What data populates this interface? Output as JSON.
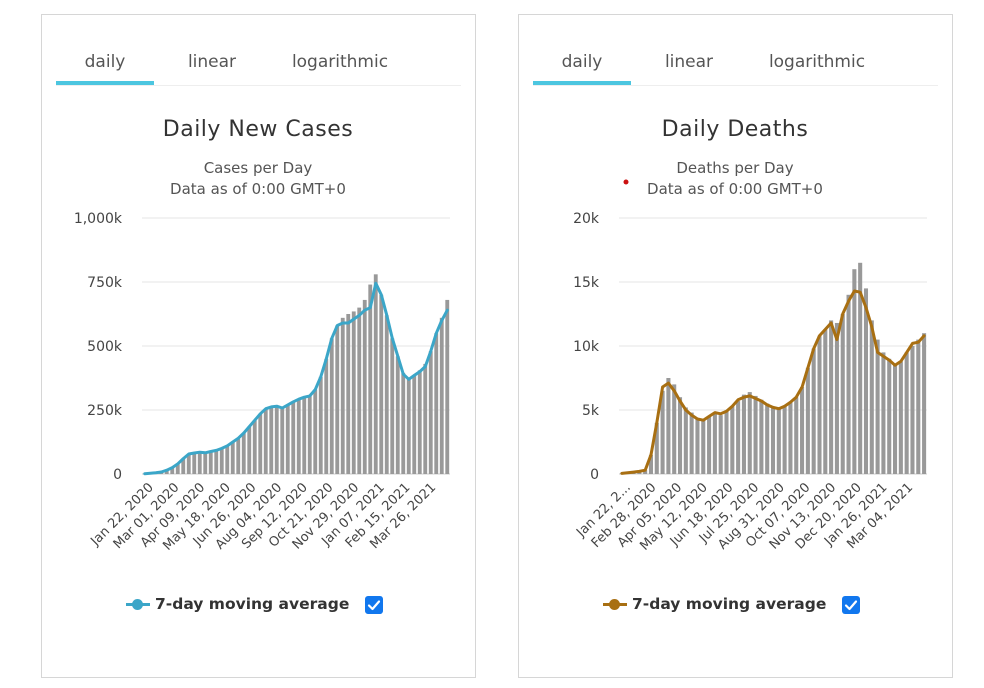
{
  "panels": [
    {
      "tabs": [
        {
          "label": "daily",
          "active": true
        },
        {
          "label": "linear",
          "active": false
        },
        {
          "label": "logarithmic",
          "active": false
        }
      ],
      "legend": {
        "label": "7-day moving average",
        "checked": true
      },
      "chart_data": {
        "type": "bar",
        "title": "Daily New Cases",
        "subtitle_lines": [
          "Cases per Day",
          "Data as of 0:00 GMT+0"
        ],
        "ylim": [
          0,
          1000000
        ],
        "y_ticks": [
          0,
          250000,
          500000,
          750000,
          1000000
        ],
        "y_tick_labels": [
          "0",
          "250k",
          "500k",
          "750k",
          "1,000k"
        ],
        "x_tick_labels": [
          "Jan 22, 2020",
          "Mar 01, 2020",
          "Apr 09, 2020",
          "May 18, 2020",
          "Jun 26, 2020",
          "Aug 04, 2020",
          "Sep 12, 2020",
          "Oct 21, 2020",
          "Nov 29, 2020",
          "Jan 07, 2021",
          "Feb 15, 2021",
          "Mar 26, 2021"
        ],
        "bar_color": "#999999",
        "line_color": "#3ba6c8",
        "grid": true,
        "legend_position": "bottom",
        "series": [
          {
            "name": "Daily",
            "kind": "bar",
            "values": [
              1000,
              3000,
              5000,
              8000,
              15000,
              25000,
              40000,
              60000,
              78000,
              82000,
              85000,
              83000,
              88000,
              92000,
              100000,
              110000,
              125000,
              140000,
              160000,
              185000,
              210000,
              235000,
              255000,
              262000,
              265000,
              258000,
              270000,
              282000,
              292000,
              300000,
              305000,
              330000,
              380000,
              450000,
              530000,
              580000,
              610000,
              625000,
              635000,
              650000,
              680000,
              740000,
              780000,
              700000,
              620000,
              530000,
              460000,
              395000,
              370000,
              385000,
              405000,
              430000,
              480000,
              550000,
              610000,
              680000
            ]
          },
          {
            "name": "7-day moving average",
            "kind": "line",
            "values": [
              1000,
              3000,
              5000,
              8000,
              15000,
              25000,
              40000,
              60000,
              78000,
              82000,
              85000,
              83000,
              88000,
              92000,
              100000,
              110000,
              125000,
              140000,
              160000,
              185000,
              210000,
              235000,
              255000,
              262000,
              265000,
              258000,
              270000,
              282000,
              292000,
              300000,
              305000,
              330000,
              380000,
              450000,
              530000,
              580000,
              590000,
              590000,
              605000,
              620000,
              640000,
              650000,
              745000,
              700000,
              620000,
              530000,
              460000,
              390000,
              370000,
              385000,
              400000,
              420000,
              480000,
              550000,
              600000,
              640000
            ]
          }
        ]
      }
    },
    {
      "tabs": [
        {
          "label": "daily",
          "active": true
        },
        {
          "label": "linear",
          "active": false
        },
        {
          "label": "logarithmic",
          "active": false
        }
      ],
      "legend": {
        "label": "7-day moving average",
        "checked": true
      },
      "chart_data": {
        "type": "bar",
        "title": "Daily Deaths",
        "subtitle_lines": [
          "Deaths per Day",
          "Data as of 0:00 GMT+0"
        ],
        "ylim": [
          0,
          20000
        ],
        "y_ticks": [
          0,
          5000,
          10000,
          15000,
          20000
        ],
        "y_tick_labels": [
          "0",
          "5k",
          "10k",
          "15k",
          "20k"
        ],
        "x_tick_labels": [
          "Jan 22, 2...",
          "Feb 28, 2020",
          "Apr 05, 2020",
          "May 12, 2020",
          "Jun 18, 2020",
          "Jul 25, 2020",
          "Aug 31, 2020",
          "Oct 07, 2020",
          "Nov 13, 2020",
          "Dec 20, 2020",
          "Jan 26, 2021",
          "Mar 04, 2021"
        ],
        "bar_color": "#999999",
        "line_color": "#a86f12",
        "grid": true,
        "legend_position": "bottom",
        "series": [
          {
            "name": "Daily",
            "kind": "bar",
            "values": [
              50,
              100,
              150,
              200,
              300,
              1500,
              4000,
              6500,
              7500,
              7000,
              6000,
              5200,
              4800,
              4300,
              4200,
              4500,
              4700,
              4600,
              4900,
              5300,
              5700,
              6200,
              6400,
              6100,
              5800,
              5500,
              5200,
              5100,
              5300,
              5600,
              6000,
              6800,
              8300,
              9800,
              10800,
              11300,
              12000,
              11800,
              12500,
              14000,
              16000,
              16500,
              14500,
              12000,
              10500,
              9500,
              9000,
              8500,
              8800,
              9500,
              10000,
              10500,
              11000
            ]
          },
          {
            "name": "7-day moving average",
            "kind": "line",
            "values": [
              50,
              100,
              150,
              200,
              300,
              1500,
              4000,
              6800,
              7100,
              6500,
              5700,
              5000,
              4600,
              4300,
              4200,
              4500,
              4800,
              4700,
              4900,
              5300,
              5800,
              6000,
              6100,
              5900,
              5700,
              5400,
              5200,
              5100,
              5300,
              5600,
              6000,
              6800,
              8300,
              9800,
              10800,
              11300,
              11800,
              10500,
              12500,
              13500,
              14300,
              14200,
              13000,
              11500,
              9500,
              9200,
              8900,
              8500,
              8800,
              9500,
              10200,
              10300,
              10800
            ]
          }
        ]
      }
    }
  ],
  "red_dot_color": "#cc1111"
}
